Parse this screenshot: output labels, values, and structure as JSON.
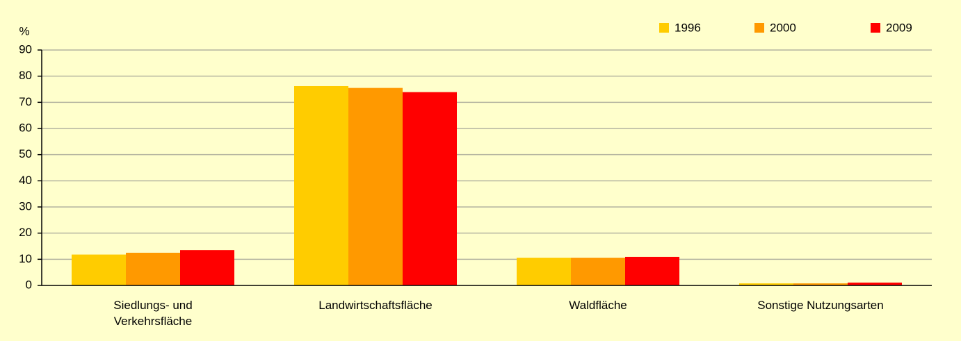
{
  "chart_data": {
    "type": "bar",
    "y_label": "%",
    "categories": [
      "Siedlungs- und\nVerkehrsfläche",
      "Landwirtschaftsfläche",
      "Waldfläche",
      "Sonstige Nutzungsarten"
    ],
    "series": [
      {
        "name": "1996",
        "color": "#ffcc00",
        "values": [
          11.8,
          76.2,
          10.6,
          0.8
        ]
      },
      {
        "name": "2000",
        "color": "#ff9900",
        "values": [
          12.5,
          75.5,
          10.6,
          0.8
        ]
      },
      {
        "name": "2009",
        "color": "#ff0000",
        "values": [
          13.5,
          73.9,
          10.9,
          1.1
        ]
      }
    ],
    "ylim": [
      0,
      90
    ],
    "yticks": [
      0,
      10,
      20,
      30,
      40,
      50,
      60,
      70,
      80,
      90
    ],
    "grid": true,
    "legend": "top-right"
  }
}
